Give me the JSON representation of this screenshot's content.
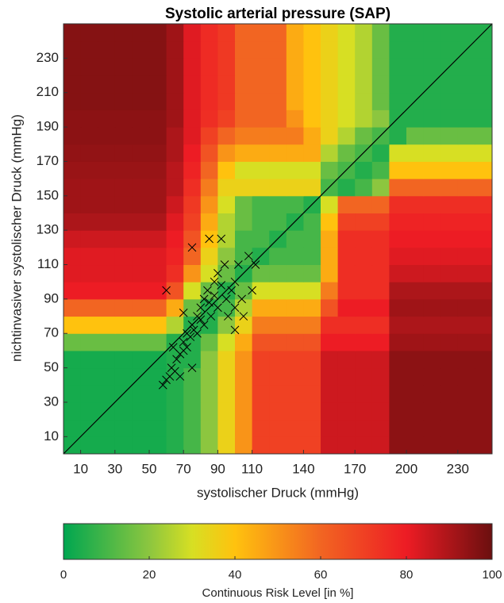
{
  "chart_data": {
    "type": "heatmap",
    "title": "Systolic arterial pressure (SAP)",
    "xlabel": "systolischer Druck (mmHg)",
    "ylabel": "nichtinvasiver systolischer Druck (mmHg)",
    "xlim": [
      0,
      250
    ],
    "ylim": [
      0,
      250
    ],
    "xticks": [
      10,
      30,
      50,
      70,
      90,
      110,
      140,
      170,
      200,
      230
    ],
    "yticks": [
      10,
      30,
      50,
      70,
      90,
      110,
      130,
      150,
      170,
      190,
      210,
      230
    ],
    "xbins": [
      0,
      10,
      20,
      30,
      40,
      50,
      60,
      70,
      80,
      90,
      100,
      110,
      120,
      130,
      140,
      150,
      160,
      170,
      180,
      190,
      200,
      210,
      220,
      230,
      240,
      250
    ],
    "ybins": [
      0,
      10,
      20,
      30,
      40,
      50,
      60,
      70,
      80,
      90,
      100,
      110,
      120,
      130,
      140,
      150,
      160,
      170,
      180,
      190,
      200,
      210,
      220,
      230,
      240,
      250
    ],
    "z": [
      [
        3,
        3,
        3,
        3,
        3,
        3,
        5,
        10,
        20,
        35,
        50,
        70,
        70,
        70,
        70,
        85,
        85,
        85,
        85,
        95,
        95,
        95,
        95,
        95,
        95
      ],
      [
        3,
        3,
        3,
        3,
        3,
        3,
        5,
        10,
        20,
        35,
        50,
        70,
        70,
        70,
        70,
        85,
        85,
        85,
        85,
        95,
        95,
        95,
        95,
        95,
        95
      ],
      [
        3,
        3,
        3,
        3,
        3,
        3,
        5,
        10,
        20,
        35,
        50,
        70,
        70,
        70,
        70,
        85,
        85,
        85,
        85,
        95,
        95,
        95,
        95,
        95,
        95
      ],
      [
        3,
        3,
        3,
        3,
        3,
        3,
        5,
        10,
        20,
        35,
        50,
        70,
        70,
        70,
        70,
        85,
        85,
        85,
        85,
        95,
        95,
        95,
        95,
        95,
        95
      ],
      [
        3,
        3,
        3,
        3,
        3,
        3,
        5,
        10,
        20,
        35,
        50,
        70,
        70,
        70,
        70,
        85,
        85,
        85,
        85,
        95,
        95,
        95,
        95,
        95,
        95
      ],
      [
        3,
        3,
        3,
        3,
        3,
        3,
        5,
        5,
        20,
        35,
        50,
        70,
        70,
        70,
        70,
        85,
        85,
        85,
        85,
        95,
        95,
        95,
        95,
        95,
        95
      ],
      [
        15,
        15,
        15,
        15,
        15,
        15,
        5,
        5,
        15,
        30,
        45,
        65,
        65,
        65,
        65,
        80,
        80,
        80,
        80,
        92,
        92,
        92,
        92,
        92,
        92
      ],
      [
        40,
        40,
        40,
        40,
        40,
        40,
        25,
        5,
        5,
        20,
        35,
        55,
        55,
        55,
        55,
        75,
        75,
        75,
        75,
        90,
        90,
        90,
        90,
        90,
        90
      ],
      [
        60,
        60,
        60,
        60,
        60,
        60,
        45,
        15,
        5,
        10,
        25,
        45,
        45,
        45,
        45,
        65,
        80,
        80,
        80,
        92,
        92,
        92,
        92,
        92,
        92
      ],
      [
        80,
        80,
        80,
        80,
        80,
        80,
        65,
        30,
        15,
        5,
        15,
        30,
        30,
        30,
        30,
        55,
        75,
        75,
        75,
        90,
        90,
        90,
        90,
        90,
        90
      ],
      [
        82,
        82,
        82,
        82,
        82,
        82,
        75,
        50,
        30,
        15,
        5,
        15,
        15,
        15,
        15,
        45,
        75,
        75,
        75,
        85,
        85,
        85,
        85,
        85,
        85
      ],
      [
        82,
        82,
        82,
        82,
        82,
        82,
        78,
        60,
        35,
        20,
        10,
        5,
        10,
        10,
        10,
        45,
        75,
        75,
        75,
        82,
        82,
        82,
        82,
        82,
        82
      ],
      [
        85,
        85,
        85,
        85,
        85,
        85,
        80,
        65,
        40,
        25,
        10,
        10,
        5,
        10,
        10,
        45,
        75,
        75,
        75,
        80,
        80,
        80,
        80,
        80,
        80
      ],
      [
        90,
        90,
        90,
        90,
        90,
        90,
        82,
        70,
        45,
        25,
        15,
        10,
        10,
        5,
        10,
        40,
        70,
        70,
        70,
        78,
        78,
        78,
        78,
        78,
        78
      ],
      [
        92,
        92,
        92,
        92,
        92,
        92,
        85,
        72,
        50,
        30,
        15,
        10,
        10,
        10,
        5,
        30,
        60,
        60,
        60,
        75,
        75,
        75,
        75,
        75,
        75
      ],
      [
        92,
        92,
        92,
        92,
        92,
        92,
        88,
        75,
        55,
        35,
        35,
        35,
        35,
        35,
        35,
        10,
        5,
        10,
        20,
        60,
        60,
        60,
        60,
        60,
        60
      ],
      [
        93,
        93,
        93,
        93,
        93,
        93,
        88,
        78,
        60,
        40,
        30,
        30,
        30,
        30,
        30,
        15,
        10,
        5,
        10,
        40,
        40,
        40,
        40,
        40,
        40
      ],
      [
        94,
        94,
        94,
        94,
        94,
        94,
        90,
        80,
        65,
        50,
        45,
        45,
        45,
        45,
        45,
        25,
        15,
        10,
        5,
        30,
        30,
        30,
        30,
        30,
        30
      ],
      [
        95,
        95,
        95,
        95,
        95,
        95,
        90,
        82,
        70,
        60,
        55,
        55,
        55,
        55,
        45,
        35,
        25,
        15,
        10,
        5,
        15,
        15,
        15,
        15,
        15
      ],
      [
        95,
        95,
        95,
        95,
        95,
        95,
        92,
        82,
        75,
        70,
        60,
        60,
        60,
        50,
        40,
        35,
        30,
        25,
        20,
        5,
        5,
        5,
        5,
        5,
        5
      ],
      [
        96,
        96,
        96,
        96,
        96,
        96,
        92,
        82,
        76,
        72,
        60,
        60,
        60,
        45,
        40,
        35,
        30,
        25,
        15,
        5,
        5,
        5,
        5,
        5,
        5
      ],
      [
        96,
        96,
        96,
        96,
        96,
        96,
        92,
        82,
        76,
        72,
        60,
        60,
        60,
        45,
        40,
        35,
        30,
        25,
        15,
        5,
        5,
        5,
        5,
        5,
        5
      ],
      [
        96,
        96,
        96,
        96,
        96,
        96,
        92,
        82,
        76,
        72,
        60,
        60,
        60,
        45,
        40,
        35,
        30,
        25,
        15,
        5,
        5,
        5,
        5,
        5,
        5
      ],
      [
        96,
        96,
        96,
        96,
        96,
        96,
        92,
        82,
        76,
        72,
        60,
        60,
        60,
        45,
        40,
        35,
        30,
        25,
        15,
        5,
        5,
        5,
        5,
        5,
        5
      ],
      [
        96,
        96,
        96,
        96,
        96,
        96,
        92,
        82,
        76,
        72,
        60,
        60,
        60,
        45,
        40,
        35,
        30,
        25,
        15,
        5,
        5,
        5,
        5,
        5,
        5
      ]
    ],
    "points": {
      "marker": "x",
      "color": "#000000",
      "x": [
        58,
        60,
        62,
        63,
        65,
        66,
        68,
        70,
        70,
        72,
        72,
        74,
        75,
        76,
        78,
        78,
        80,
        80,
        82,
        82,
        84,
        85,
        86,
        88,
        88,
        90,
        90,
        92,
        94,
        95,
        96,
        98,
        100,
        100,
        102,
        104,
        105,
        108,
        110,
        112,
        75,
        85,
        92,
        70,
        68,
        75,
        64,
        100,
        60
      ],
      "y": [
        40,
        43,
        45,
        50,
        48,
        55,
        58,
        60,
        65,
        62,
        70,
        68,
        75,
        72,
        80,
        70,
        85,
        78,
        90,
        75,
        95,
        88,
        80,
        100,
        92,
        105,
        85,
        98,
        110,
        90,
        80,
        95,
        100,
        85,
        110,
        90,
        80,
        115,
        95,
        110,
        120,
        125,
        125,
        82,
        45,
        50,
        62,
        72,
        95
      ]
    },
    "colorbar": {
      "label": "Continuous Risk Level [in %]",
      "lim": [
        0,
        100
      ],
      "ticks": [
        0,
        20,
        40,
        60,
        80,
        100
      ],
      "colorscale": [
        [
          0,
          "#00a650"
        ],
        [
          20,
          "#8cc63f"
        ],
        [
          30,
          "#d7df23"
        ],
        [
          40,
          "#ffc20e"
        ],
        [
          60,
          "#f26522"
        ],
        [
          80,
          "#ed1c24"
        ],
        [
          100,
          "#6b0f0f"
        ]
      ]
    }
  }
}
